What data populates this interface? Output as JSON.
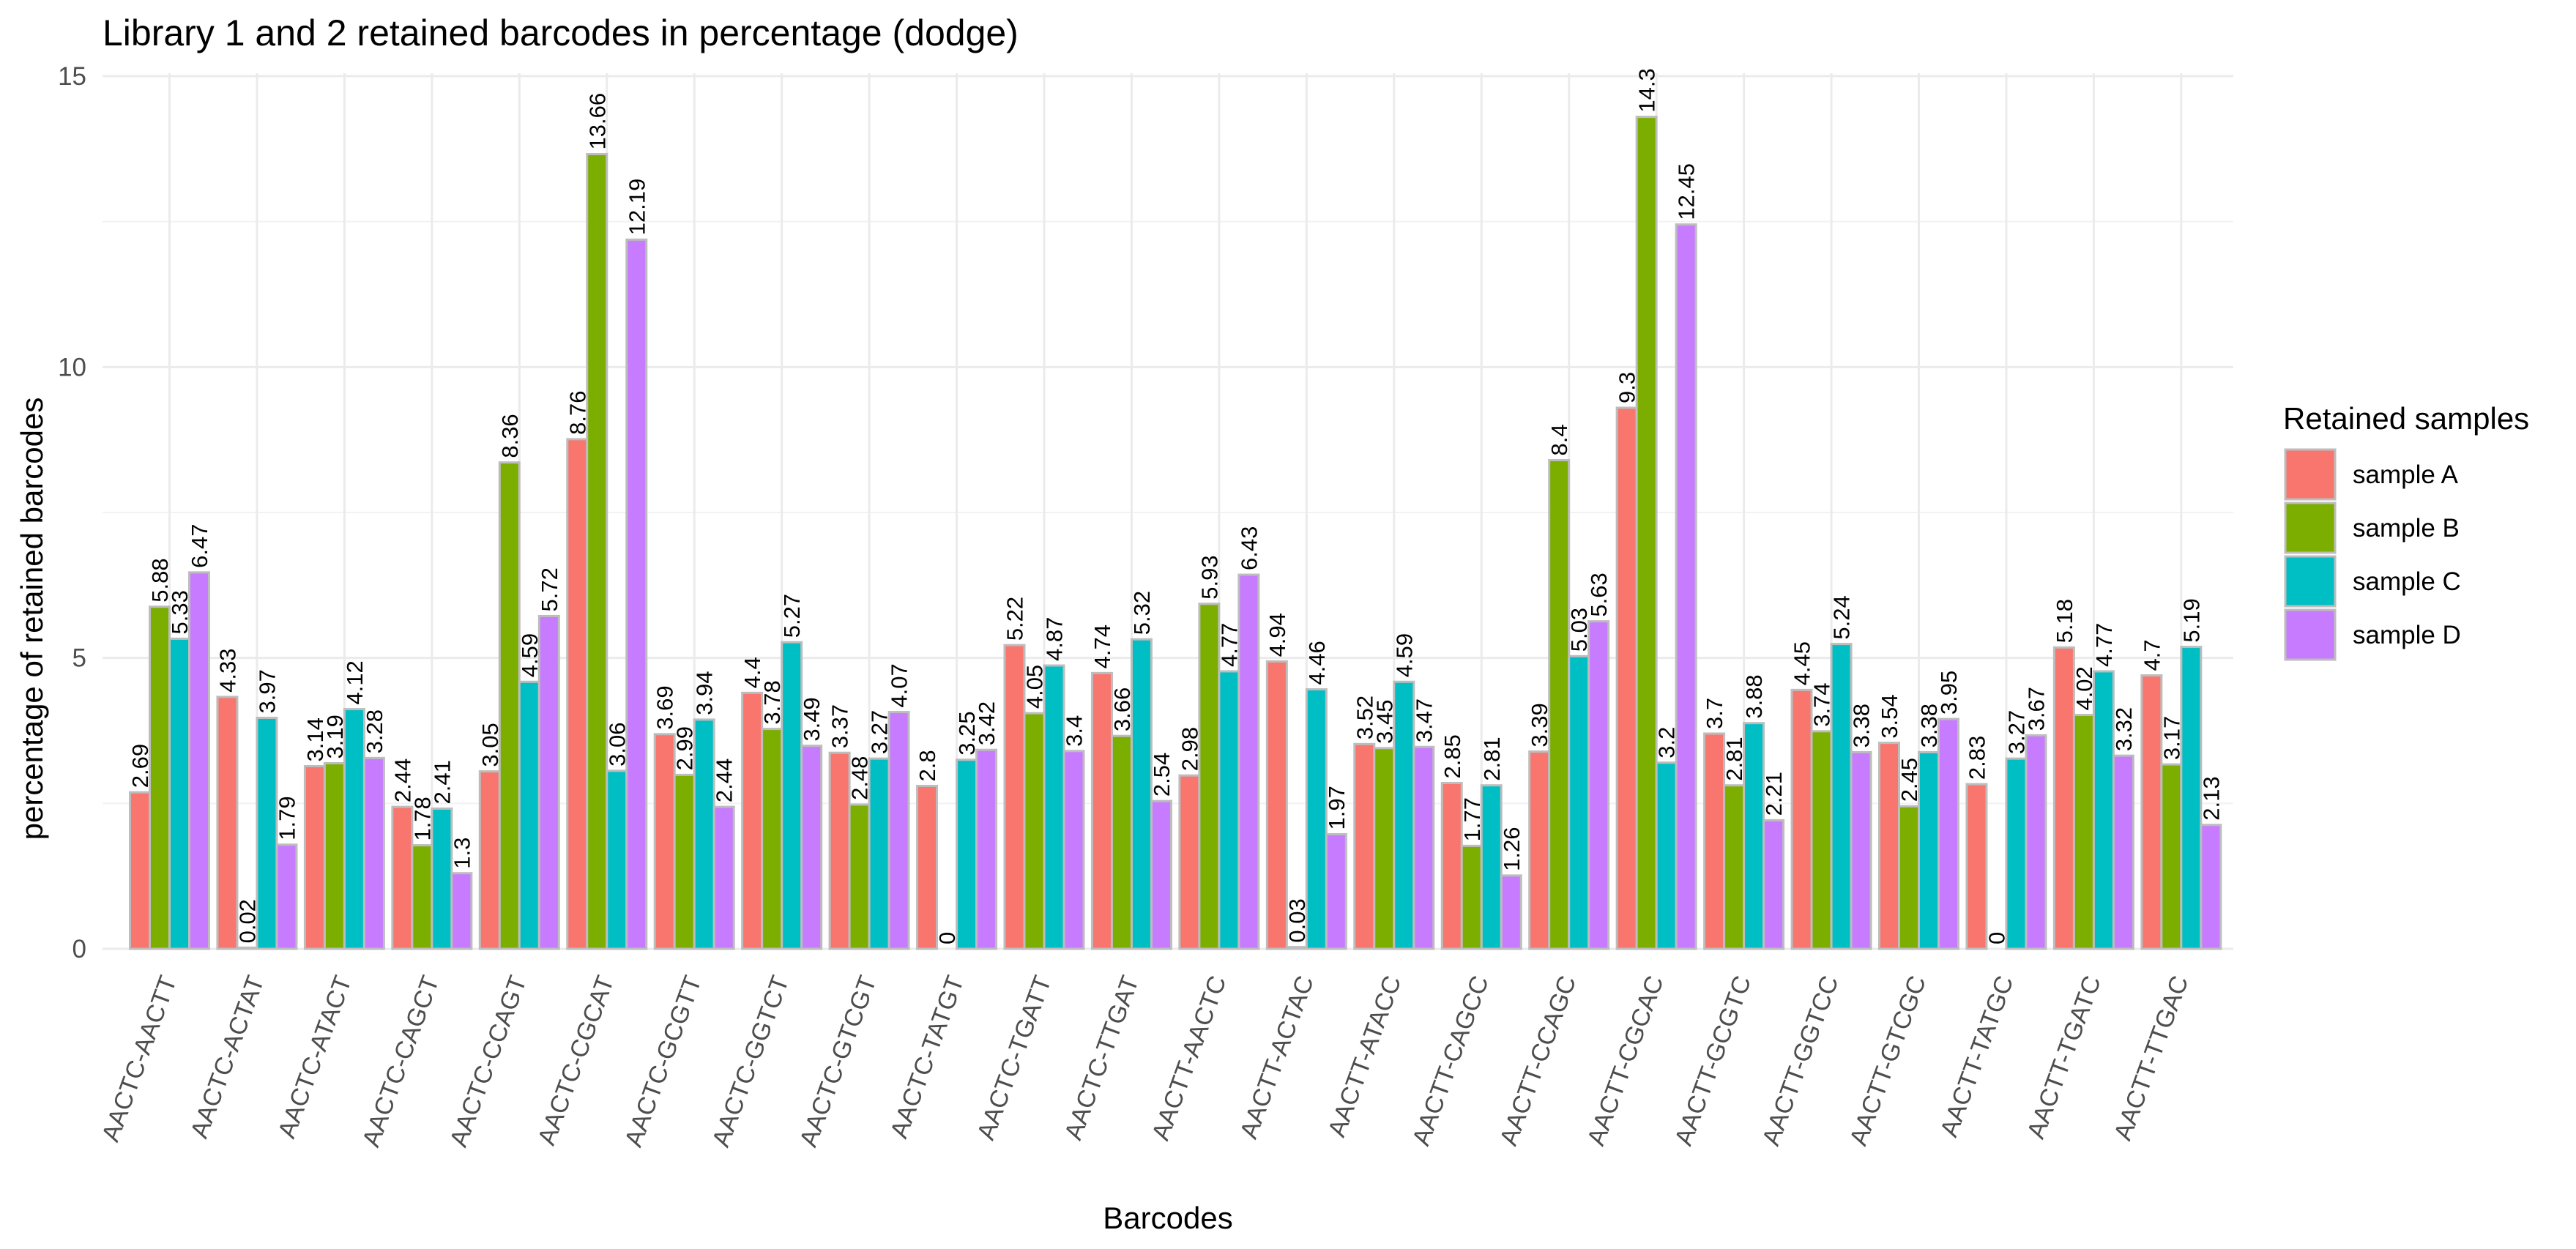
{
  "chart_data": {
    "type": "bar",
    "title": "Library 1 and 2 retained barcodes in percentage (dodge)",
    "xlabel": "Barcodes",
    "ylabel": "percentage of retained barcodes",
    "ylim": [
      0,
      15
    ],
    "yticks": [
      0,
      5,
      10,
      15
    ],
    "grid": true,
    "legend_title": "Retained samples",
    "legend_position": "right",
    "categories": [
      "AACTC-AACTT",
      "AACTC-ACTAT",
      "AACTC-ATACT",
      "AACTC-CAGCT",
      "AACTC-CCAGT",
      "AACTC-CGCAT",
      "AACTC-GCGTT",
      "AACTC-GGTCT",
      "AACTC-GTCGT",
      "AACTC-TATGT",
      "AACTC-TGATT",
      "AACTC-TTGAT",
      "AACTT-AACTC",
      "AACTT-ACTAC",
      "AACTT-ATACC",
      "AACTT-CAGCC",
      "AACTT-CCAGC",
      "AACTT-CGCAC",
      "AACTT-GCGTC",
      "AACTT-GGTCC",
      "AACTT-GTCGC",
      "AACTT-TATGC",
      "AACTT-TGATC",
      "AACTT-TTGAC"
    ],
    "series": [
      {
        "name": "sample A",
        "color": "#F8766D",
        "values": [
          2.69,
          4.33,
          3.14,
          2.44,
          3.05,
          8.76,
          3.69,
          4.4,
          3.37,
          2.8,
          5.22,
          4.74,
          2.98,
          4.94,
          3.52,
          2.85,
          3.39,
          9.3,
          3.7,
          4.45,
          3.54,
          2.83,
          5.18,
          4.7
        ]
      },
      {
        "name": "sample B",
        "color": "#7CAE00",
        "values": [
          5.88,
          0.02,
          3.19,
          1.78,
          8.36,
          13.66,
          2.99,
          3.78,
          2.48,
          0,
          4.05,
          3.66,
          5.93,
          0.03,
          3.45,
          1.77,
          8.4,
          14.3,
          2.81,
          3.74,
          2.45,
          0,
          4.02,
          3.17
        ]
      },
      {
        "name": "sample C",
        "color": "#00BFC4",
        "values": [
          5.33,
          3.97,
          4.12,
          2.41,
          4.59,
          3.06,
          3.94,
          5.27,
          3.27,
          3.25,
          4.87,
          5.32,
          4.77,
          4.46,
          4.59,
          2.81,
          5.03,
          3.2,
          3.88,
          5.24,
          3.38,
          3.27,
          4.77,
          5.19
        ]
      },
      {
        "name": "sample D",
        "color": "#C77CFF",
        "values": [
          6.47,
          1.79,
          3.28,
          1.3,
          5.72,
          12.19,
          2.44,
          3.49,
          4.07,
          3.42,
          3.4,
          2.54,
          6.43,
          1.97,
          3.47,
          1.26,
          5.63,
          12.45,
          2.21,
          3.38,
          3.95,
          3.67,
          3.32,
          2.13
        ]
      }
    ],
    "data_labels": [
      [
        "2.69",
        "5.88",
        "5.33",
        "6.47"
      ],
      [
        "4.33",
        "0.02",
        "3.97",
        "1.79"
      ],
      [
        "3.14",
        "3.19",
        "4.12",
        "3.28"
      ],
      [
        "2.44",
        "1.78",
        "2.41",
        "1.3"
      ],
      [
        "3.05",
        "8.36",
        "4.59",
        "5.72"
      ],
      [
        "8.76",
        "13.66",
        "3.06",
        "12.19"
      ],
      [
        "3.69",
        "2.99",
        "3.94",
        "2.44"
      ],
      [
        "4.4",
        "3.78",
        "5.27",
        "3.49"
      ],
      [
        "3.37",
        "2.48",
        "3.27",
        "4.07"
      ],
      [
        "2.8",
        "0",
        "3.25",
        "3.42"
      ],
      [
        "5.22",
        "4.05",
        "4.87",
        "3.4"
      ],
      [
        "4.74",
        "3.66",
        "5.32",
        "2.54"
      ],
      [
        "2.98",
        "5.93",
        "4.77",
        "6.43"
      ],
      [
        "4.94",
        "0.03",
        "4.46",
        "1.97"
      ],
      [
        "3.52",
        "3.45",
        "4.59",
        "3.47"
      ],
      [
        "2.85",
        "1.77",
        "2.81",
        "1.26"
      ],
      [
        "3.39",
        "8.4",
        "5.03",
        "5.63"
      ],
      [
        "9.3",
        "14.3",
        "3.2",
        "12.45"
      ],
      [
        "3.7",
        "2.81",
        "3.88",
        "2.21"
      ],
      [
        "4.45",
        "3.74",
        "5.24",
        "3.38"
      ],
      [
        "3.54",
        "2.45",
        "3.38",
        "3.95"
      ],
      [
        "2.83",
        "0",
        "3.27",
        "3.67"
      ],
      [
        "5.18",
        "4.02",
        "4.77",
        "3.32"
      ],
      [
        "4.7",
        "3.17",
        "5.19",
        "2.13"
      ]
    ]
  }
}
